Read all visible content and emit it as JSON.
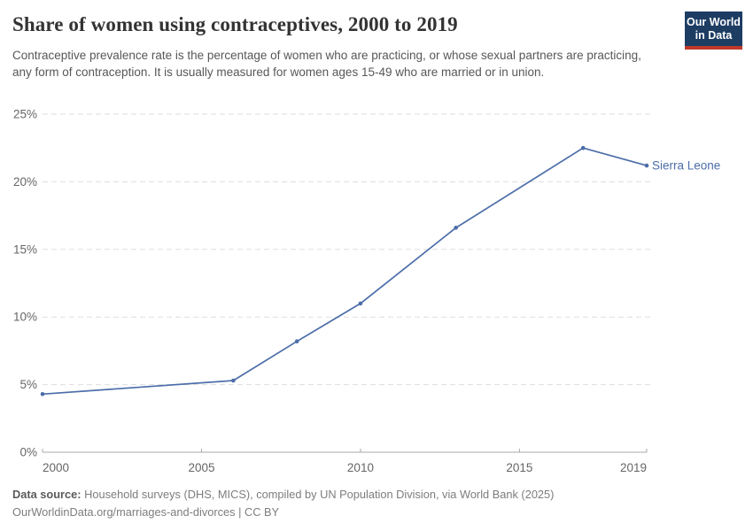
{
  "header": {
    "title": "Share of women using contraceptives, 2000 to 2019",
    "subtitle": "Contraceptive prevalence rate is the percentage of women who are practicing, or whose sexual partners are practicing, any form of contraception. It is usually measured for women ages 15-49 who are married or in union.",
    "logo": {
      "line1": "Our World",
      "line2": "in Data"
    }
  },
  "chart_data": {
    "type": "line",
    "title": "Share of women using contraceptives, 2000 to 2019",
    "entity_label": "Sierra Leone",
    "x": {
      "range": [
        2000,
        2019
      ],
      "ticks": [
        2000,
        2005,
        2010,
        2015,
        2019
      ]
    },
    "y": {
      "range": [
        0,
        25
      ],
      "ticks": [
        0,
        5,
        10,
        15,
        20,
        25
      ],
      "tick_suffix": "%"
    },
    "grid": "horizontal-dashed",
    "legend_position": "end-of-line",
    "series": [
      {
        "name": "Sierra Leone",
        "color": "#4c6da9",
        "x": [
          2000,
          2006,
          2008,
          2010,
          2013,
          2017,
          2019
        ],
        "values": [
          4.3,
          5.3,
          8.2,
          11.0,
          16.6,
          22.5,
          21.2
        ]
      }
    ]
  },
  "footer": {
    "datasource_label": "Data source:",
    "datasource_text": "Household surveys (DHS, MICS), compiled by UN Population Division, via World Bank (2025)",
    "license_line": "OurWorldinData.org/marriages-and-divorces | CC BY"
  },
  "colors": {
    "line": "#4c6da9",
    "grid": "#dedede",
    "axis": "#a8a8a8",
    "tick_label": "#666666",
    "title": "#333333",
    "subtitle": "#575757",
    "footer": "#7d7d7d",
    "logo_bg": "#1d3d63",
    "logo_accent": "#c0392b"
  }
}
